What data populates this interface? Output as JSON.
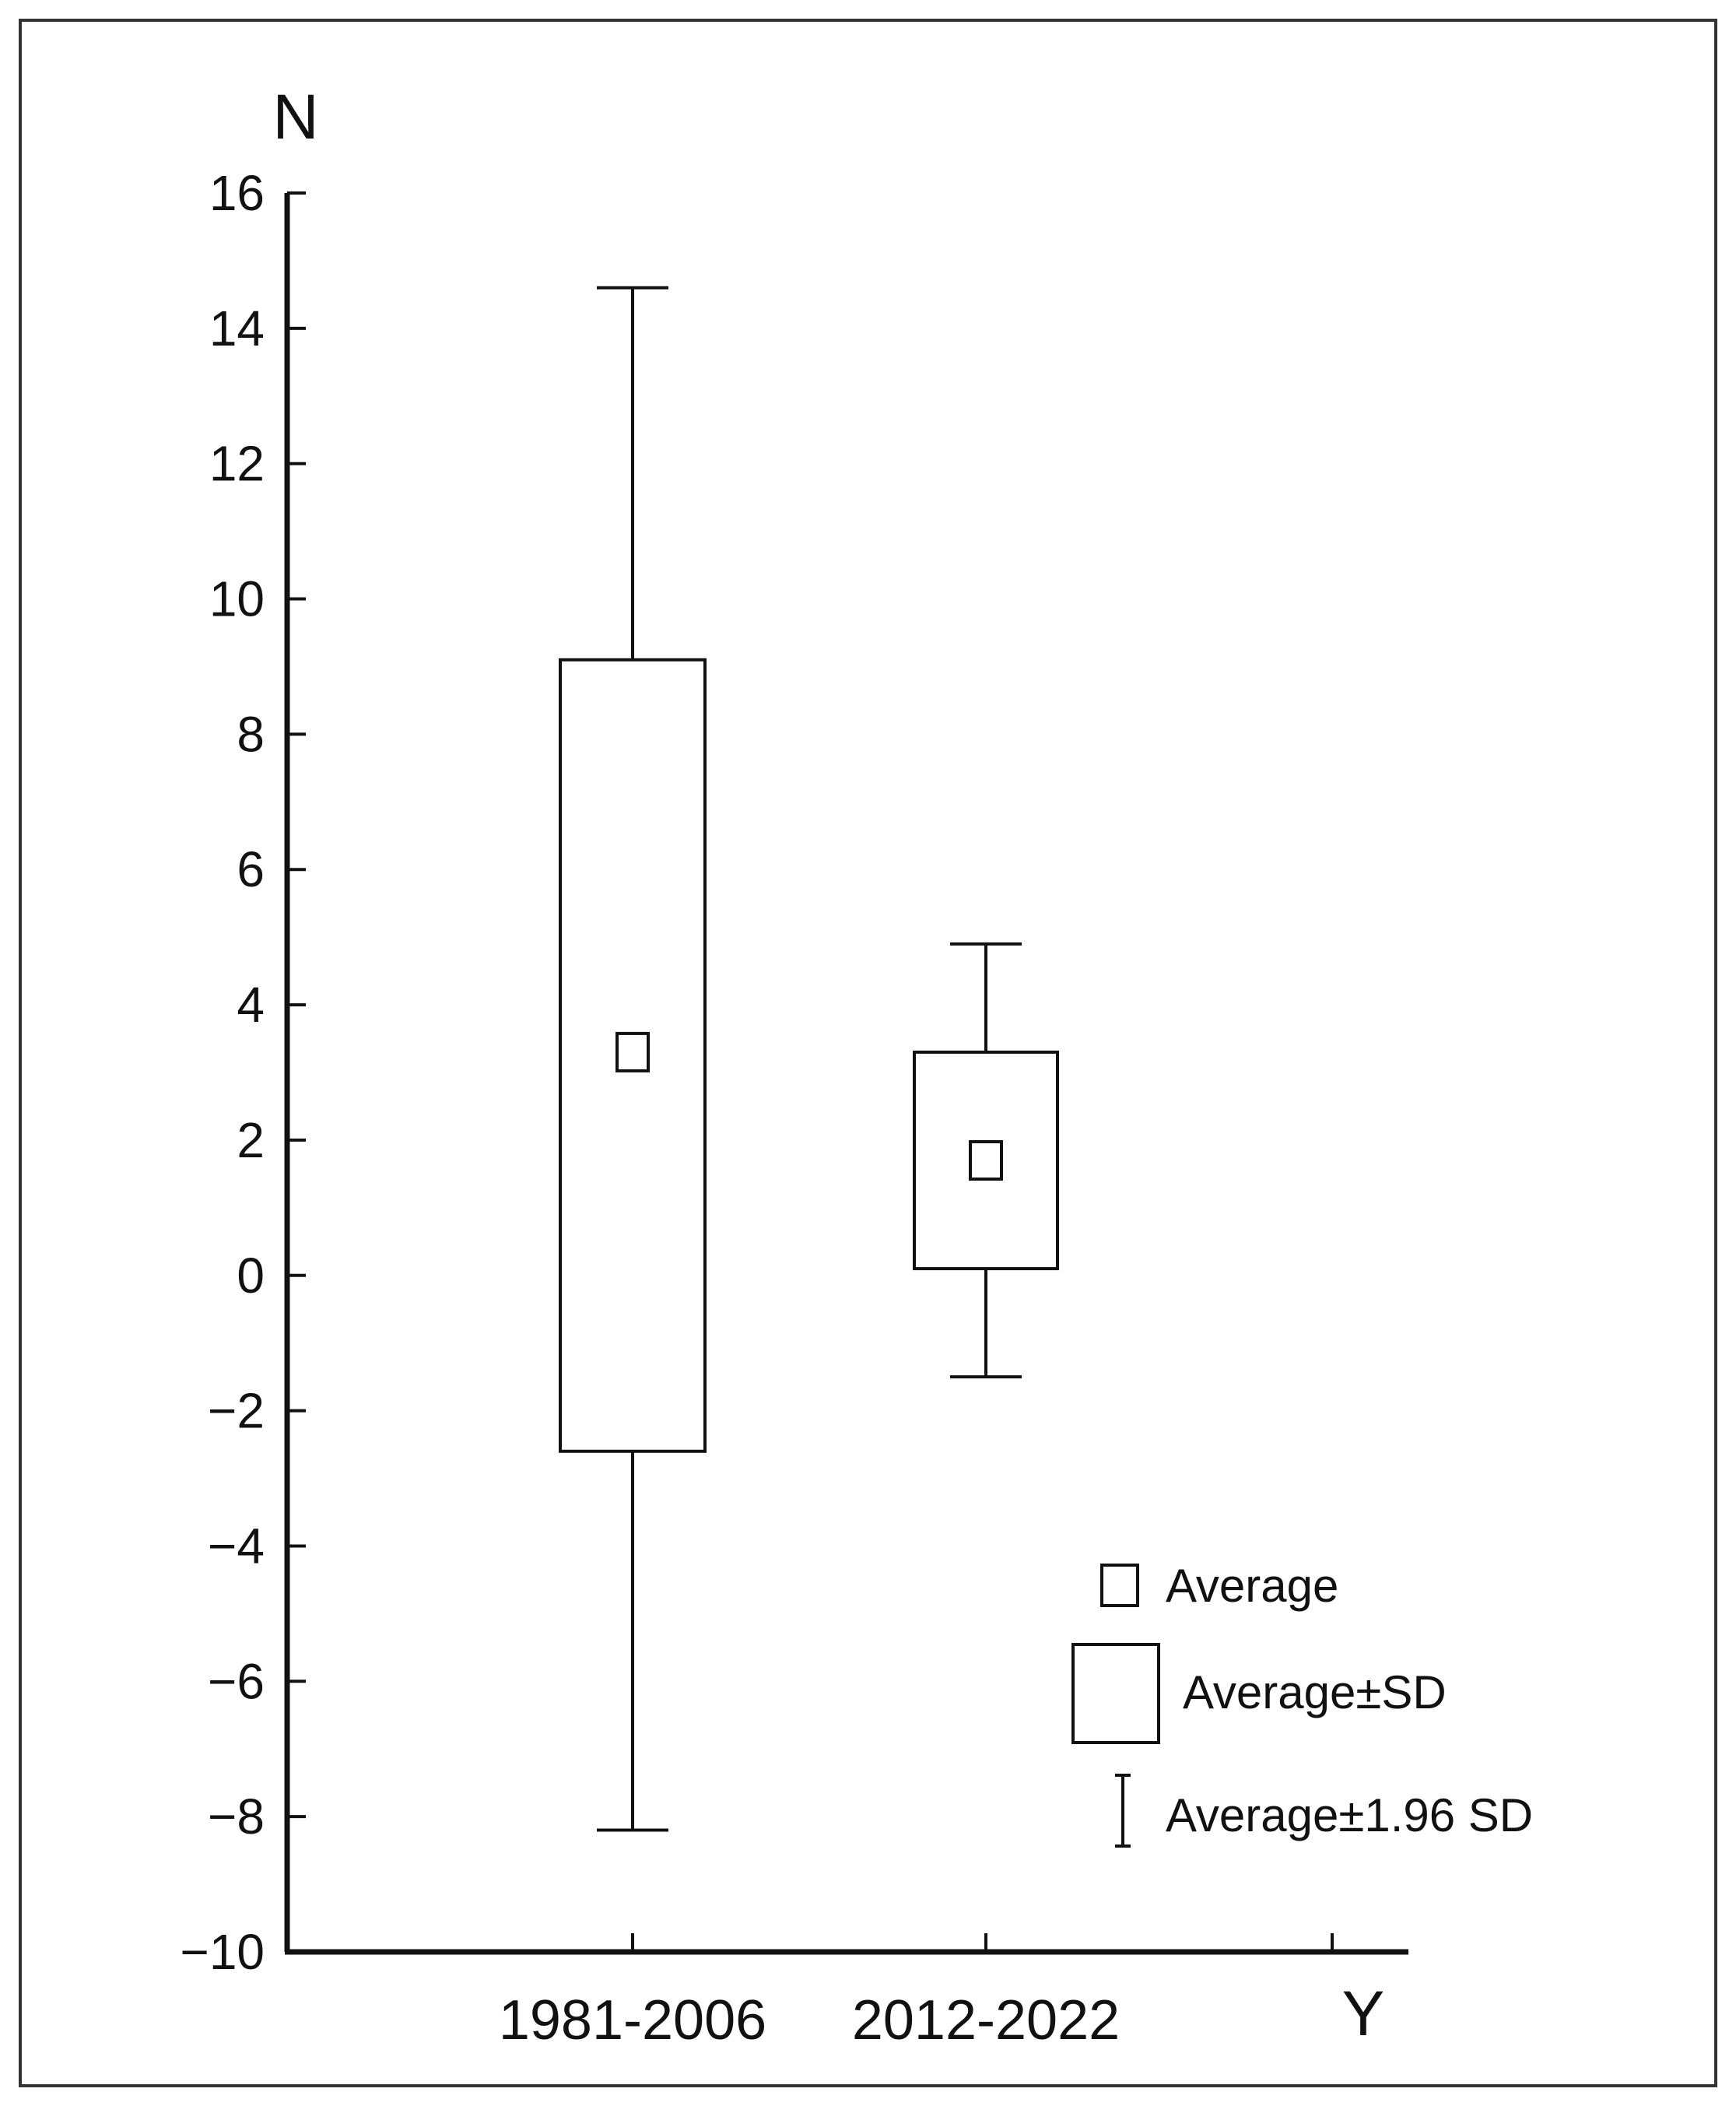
{
  "chart_data": {
    "type": "box",
    "y_axis_label": "N",
    "x_axis_label": "Y",
    "ylim": [
      -10,
      16
    ],
    "y_ticks": [
      16,
      14,
      12,
      10,
      8,
      6,
      4,
      2,
      0,
      -2,
      -4,
      -6,
      -8,
      -10
    ],
    "y_tick_labels": [
      "16",
      "14",
      "12",
      "10",
      "8",
      "6",
      "4",
      "2",
      "0",
      "−2",
      "−4",
      "−6",
      "−8",
      "−10"
    ],
    "categories": [
      "1981-2006",
      "2012-2022"
    ],
    "series": [
      {
        "category": "1981-2006",
        "average": 3.3,
        "sd_low": -2.6,
        "sd_high": 9.1,
        "ci_low": -8.2,
        "ci_high": 14.6
      },
      {
        "category": "2012-2022",
        "average": 1.7,
        "sd_low": 0.1,
        "sd_high": 3.3,
        "ci_low": -1.5,
        "ci_high": 4.9
      }
    ],
    "legend": {
      "position": "bottom-right",
      "items": [
        {
          "symbol": "average",
          "label": "Average"
        },
        {
          "symbol": "sd-box",
          "label": "Average±SD"
        },
        {
          "symbol": "ci-whisker",
          "label": "Average±1.96 SD"
        }
      ]
    },
    "grid": false,
    "colors": {
      "stroke": "#111111",
      "background": "#ffffff",
      "frame": "#333333"
    }
  }
}
